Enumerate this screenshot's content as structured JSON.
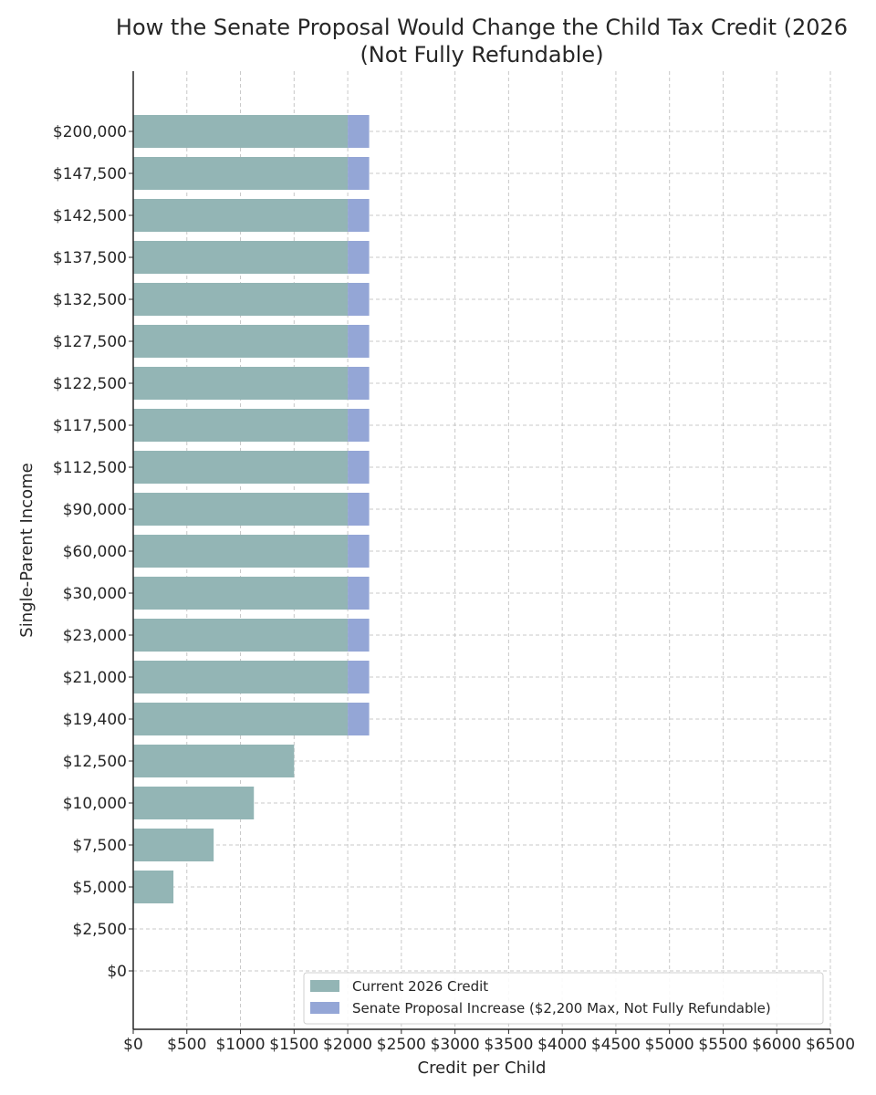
{
  "chart_data": {
    "type": "bar",
    "orientation": "horizontal",
    "stacked": true,
    "title_line1": "How the Senate Proposal Would Change the Child Tax Credit (2026",
    "title_line2": "(Not Fully Refundable)",
    "xlabel": "Credit per Child",
    "ylabel": "Single-Parent Income",
    "xlim": [
      0,
      6500
    ],
    "x_ticks": [
      0,
      500,
      1000,
      1500,
      2000,
      2500,
      3000,
      3500,
      4000,
      4500,
      5000,
      5500,
      6000,
      6500
    ],
    "x_tick_labels": [
      "$0",
      "$500",
      "$1000",
      "$1500",
      "$2000",
      "$2500",
      "$3000",
      "$3500",
      "$4000",
      "$4500",
      "$5000",
      "$5500",
      "$6000",
      "$6500"
    ],
    "categories": [
      "$0",
      "$2,500",
      "$5,000",
      "$7,500",
      "$10,000",
      "$12,500",
      "$19,400",
      "$21,000",
      "$23,000",
      "$30,000",
      "$60,000",
      "$90,000",
      "$112,500",
      "$117,500",
      "$122,500",
      "$127,500",
      "$132,500",
      "$137,500",
      "$142,500",
      "$147,500",
      "$200,000"
    ],
    "series": [
      {
        "name": "Current 2026 Credit",
        "color": "#93b5b5",
        "values": [
          0,
          0,
          375,
          750,
          1125,
          1500,
          2000,
          2000,
          2000,
          2000,
          2000,
          2000,
          2000,
          2000,
          2000,
          2000,
          2000,
          2000,
          2000,
          2000,
          2000
        ]
      },
      {
        "name": "Senate Proposal Increase ($2,200 Max, Not Fully Refundable)",
        "color": "#94a6d6",
        "values": [
          0,
          0,
          0,
          0,
          0,
          0,
          200,
          200,
          200,
          200,
          200,
          200,
          200,
          200,
          200,
          200,
          200,
          200,
          200,
          200,
          200
        ]
      }
    ],
    "grid": true,
    "legend_position": "lower-right"
  }
}
